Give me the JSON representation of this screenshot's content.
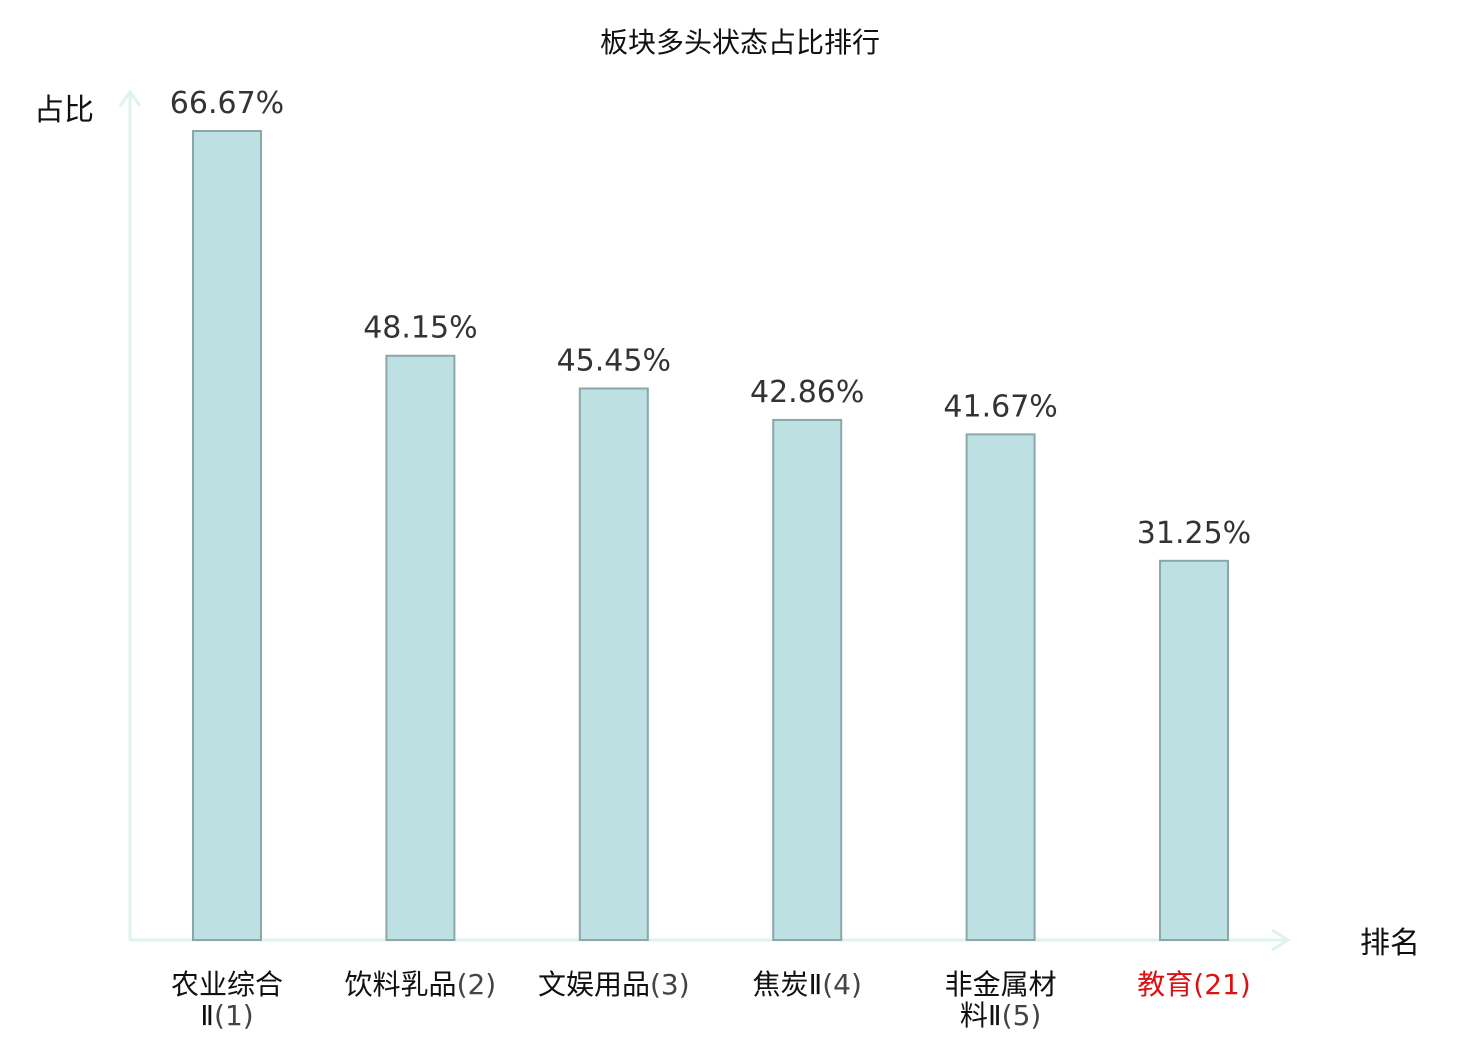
{
  "chart_data": {
    "type": "bar",
    "title": "板块多头状态占比排行",
    "ylabel": "占比",
    "xlabel": "排名",
    "ylim": [
      0,
      70
    ],
    "grid": false,
    "categories": [
      {
        "name": "农业综合Ⅱ",
        "rank": "(1)",
        "highlight": false
      },
      {
        "name": "饮料乳品",
        "rank": "(2)",
        "highlight": false
      },
      {
        "name": "文娱用品",
        "rank": "(3)",
        "highlight": false
      },
      {
        "name": "焦炭Ⅱ",
        "rank": "(4)",
        "highlight": false
      },
      {
        "name": "非金属材料Ⅱ",
        "rank": "(5)",
        "highlight": false
      },
      {
        "name": "教育",
        "rank": "(21)",
        "highlight": true
      }
    ],
    "values": [
      66.67,
      48.15,
      45.45,
      42.86,
      41.67,
      31.25
    ],
    "value_labels": [
      "66.67%",
      "48.15%",
      "45.45%",
      "42.86%",
      "41.67%",
      "31.25%"
    ]
  },
  "colors": {
    "bar_fill": "#bde0e3",
    "bar_stroke": "#8aa7aa",
    "axis": "#e0f2f0",
    "highlight": "#dd1111",
    "cat_name": "#111111",
    "cat_rank": "#444444"
  }
}
